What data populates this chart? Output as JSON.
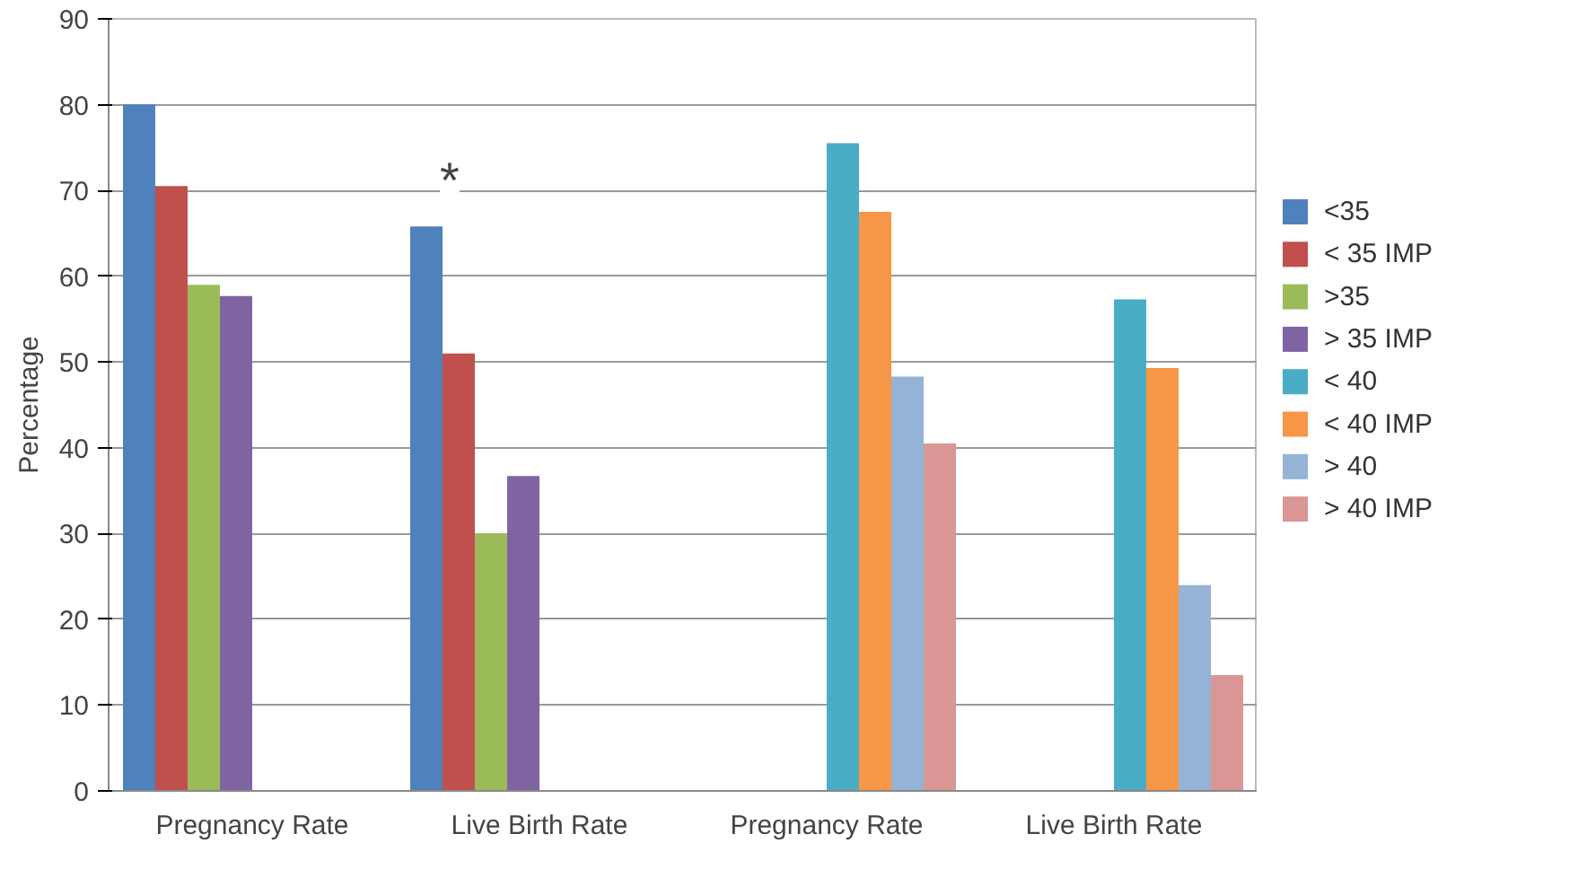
{
  "chart_data": {
    "type": "bar",
    "ylabel": "Percentage",
    "categories": [
      "Pregnancy Rate",
      "Live Birth Rate",
      "Pregnancy Rate",
      "Live Birth Rate"
    ],
    "series": [
      {
        "name": "<35",
        "color": "#4f81bd",
        "values": [
          80,
          65.8,
          null,
          null
        ]
      },
      {
        "name": "< 35 IMP",
        "color": "#c0504d",
        "values": [
          70.5,
          51,
          null,
          null
        ]
      },
      {
        "name": ">35",
        "color": "#9bbb59",
        "values": [
          59,
          30,
          null,
          null
        ]
      },
      {
        "name": "> 35 IMP",
        "color": "#8064a2",
        "values": [
          57.7,
          36.7,
          null,
          null
        ]
      },
      {
        "name": "< 40",
        "color": "#4bacc6",
        "values": [
          null,
          null,
          75.5,
          57.3
        ]
      },
      {
        "name": "< 40 IMP",
        "color": "#f79646",
        "values": [
          null,
          null,
          67.5,
          49.3
        ]
      },
      {
        "name": "> 40",
        "color": "#95b3d7",
        "values": [
          null,
          null,
          48.3,
          24
        ]
      },
      {
        "name": "> 40 IMP",
        "color": "#d99694",
        "values": [
          null,
          null,
          40.5,
          13.5
        ]
      }
    ],
    "ylim": [
      0,
      90
    ],
    "yticks": [
      0,
      10,
      20,
      30,
      40,
      50,
      60,
      70,
      80,
      90
    ],
    "grid": "y",
    "legend": "right",
    "annotations": [
      "*"
    ]
  }
}
